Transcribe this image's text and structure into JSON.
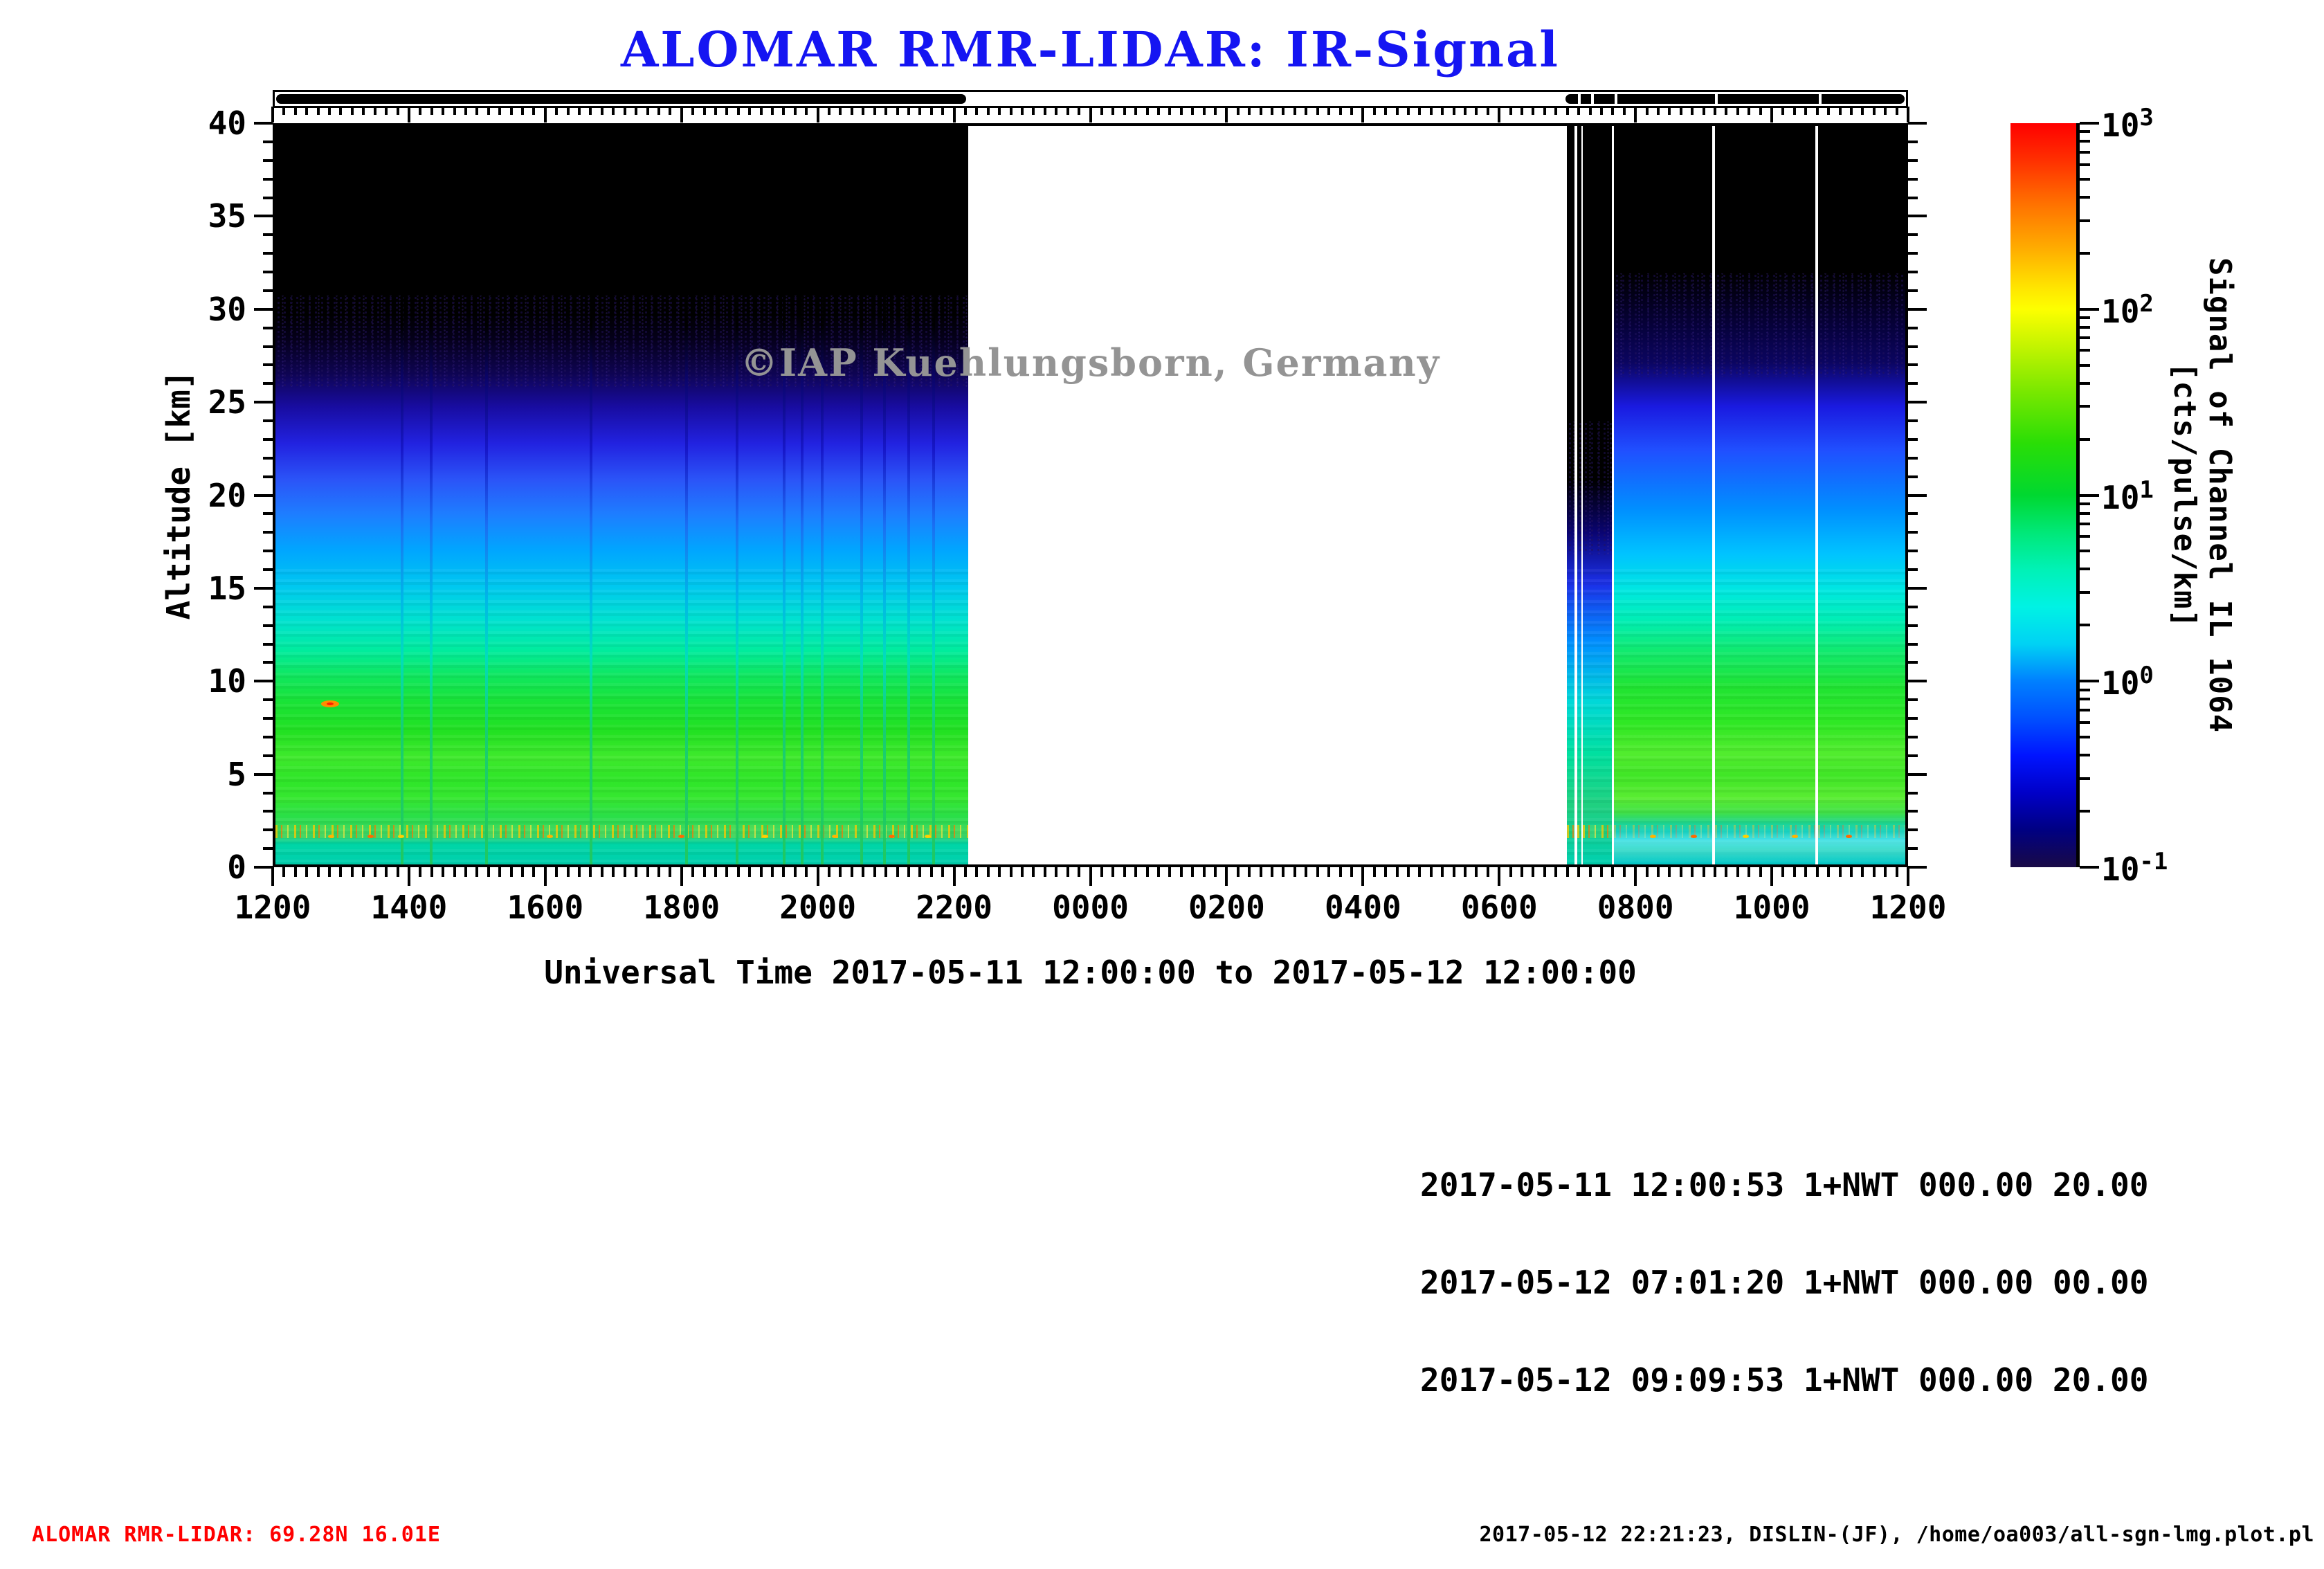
{
  "title": "ALOMAR RMR-LIDAR: IR-Signal",
  "watermark": "©IAP Kuehlungsborn, Germany",
  "colors": {
    "title_blue": "#1515f2",
    "watermark_gray": "#949494",
    "station_red": "#ff0000"
  },
  "axes": {
    "x_title": "Universal Time 2017-05-11 12:00:00 to 2017-05-12 12:00:00",
    "y_title": "Altitude [km]",
    "x_tick_labels": [
      "1200",
      "1400",
      "1600",
      "1800",
      "2000",
      "2200",
      "0000",
      "0200",
      "0400",
      "0600",
      "0800",
      "1000",
      "1200"
    ],
    "y_tick_labels": [
      "0",
      "5",
      "10",
      "15",
      "20",
      "25",
      "30",
      "35",
      "40"
    ]
  },
  "colorbar": {
    "title": "Signal of Channel IL 1064 [cts/pulse/km]",
    "tick_base": "10",
    "tick_exponents": [
      "3",
      "2",
      "1",
      "0",
      "-1"
    ],
    "scale": "log",
    "min": 0.1,
    "max": 1000
  },
  "annotations": {
    "lines": [
      "2017-05-11 12:00:53 1+NWT 000.00 20.00",
      "2017-05-12 07:01:20 1+NWT 000.00 00.00",
      "2017-05-12 09:09:53 1+NWT 000.00 20.00"
    ]
  },
  "footer": {
    "left": "ALOMAR RMR-LIDAR: 69.28N 16.01E",
    "right": "2017-05-12 22:21:23, DISLIN-(JF), /home/oa003/all-sgn-lmg.plot.pl"
  },
  "chart_data": {
    "type": "heatmap",
    "title": "ALOMAR RMR-LIDAR: IR-Signal",
    "xlabel": "Universal Time 2017-05-11 12:00:00 to 2017-05-12 12:00:00",
    "ylabel": "Altitude [km]",
    "x_ticks": [
      "1200",
      "1400",
      "1600",
      "1800",
      "2000",
      "2200",
      "0000",
      "0200",
      "0400",
      "0600",
      "0800",
      "1000",
      "1200"
    ],
    "x_range_hours_ut": [
      12,
      36
    ],
    "ylim": [
      0,
      40
    ],
    "z_scale": "log10",
    "zlim": [
      0.1,
      1000
    ],
    "z_units": "cts/pulse/km",
    "legend_position": "right-colorbar",
    "grid": false,
    "measurement_periods": [
      {
        "start": "2017-05-11 12:00:53",
        "mode": "1+NWT",
        "params": [
          "000.00",
          "20.00"
        ],
        "coverage_frac": [
          0.0,
          0.425
        ]
      },
      {
        "start": "2017-05-12 07:01:20",
        "mode": "1+NWT",
        "params": [
          "000.00",
          "00.00"
        ],
        "coverage_frac": [
          0.792,
          0.82
        ]
      },
      {
        "start": "2017-05-12 09:09:53",
        "mode": "1+NWT",
        "params": [
          "000.00",
          "20.00"
        ],
        "coverage_frac": [
          0.82,
          1.0
        ]
      }
    ],
    "blocks": [
      {
        "x0": 0.0,
        "x1": 0.4249,
        "style": "left"
      },
      {
        "x0": 0.7923,
        "x1": 0.7972,
        "style": "dim"
      },
      {
        "x0": 0.7988,
        "x1": 0.8013,
        "style": "dim"
      },
      {
        "x0": 0.8022,
        "x1": 0.8199,
        "style": "dim"
      },
      {
        "x0": 0.8212,
        "x1": 0.8815,
        "style": "right"
      },
      {
        "x0": 0.8832,
        "x1": 0.9446,
        "style": "right"
      },
      {
        "x0": 0.9463,
        "x1": 1.0,
        "style": "right"
      }
    ],
    "data_gap_fracs_left_block": [
      0.0779,
      0.0956,
      0.1295,
      0.1938,
      0.2522,
      0.2831,
      0.3123,
      0.3233,
      0.3356,
      0.3597,
      0.3737,
      0.3885,
      0.4037
    ],
    "coverage_bar_segments_frac": [
      {
        "x0": 0.0,
        "x1": 0.4249
      },
      {
        "x0": 0.7905,
        "x1": 1.0,
        "gap_fracs": [
          0.798,
          0.806,
          0.8205,
          0.882,
          0.9455
        ]
      }
    ],
    "mean_profile": [
      {
        "alt_km": 0.5,
        "signal_cts_pulse_km": 3
      },
      {
        "alt_km": 1.5,
        "signal_cts_pulse_km": 30
      },
      {
        "alt_km": 3,
        "signal_cts_pulse_km": 12
      },
      {
        "alt_km": 5,
        "signal_cts_pulse_km": 16
      },
      {
        "alt_km": 8,
        "signal_cts_pulse_km": 10
      },
      {
        "alt_km": 10,
        "signal_cts_pulse_km": 6
      },
      {
        "alt_km": 12,
        "signal_cts_pulse_km": 4
      },
      {
        "alt_km": 15,
        "signal_cts_pulse_km": 2
      },
      {
        "alt_km": 18,
        "signal_cts_pulse_km": 0.9
      },
      {
        "alt_km": 21,
        "signal_cts_pulse_km": 0.45
      },
      {
        "alt_km": 24,
        "signal_cts_pulse_km": 0.2
      },
      {
        "alt_km": 27,
        "signal_cts_pulse_km": 0.13
      },
      {
        "alt_km": 30,
        "signal_cts_pulse_km": 0.1
      },
      {
        "alt_km": 40,
        "signal_cts_pulse_km": 0.1
      }
    ],
    "features": {
      "cloud": {
        "time_frac": 0.0334,
        "alt_km": 8.7,
        "signal": ">100"
      },
      "aerosol_layer": {
        "alt_km": 1.5,
        "signal_range": [
          10,
          300
        ]
      },
      "aerosol_dot_fracs": [
        0.034,
        0.058,
        0.077,
        0.168,
        0.249,
        0.3,
        0.343,
        0.378,
        0.4,
        0.845,
        0.87,
        0.902,
        0.932,
        0.965
      ]
    }
  }
}
